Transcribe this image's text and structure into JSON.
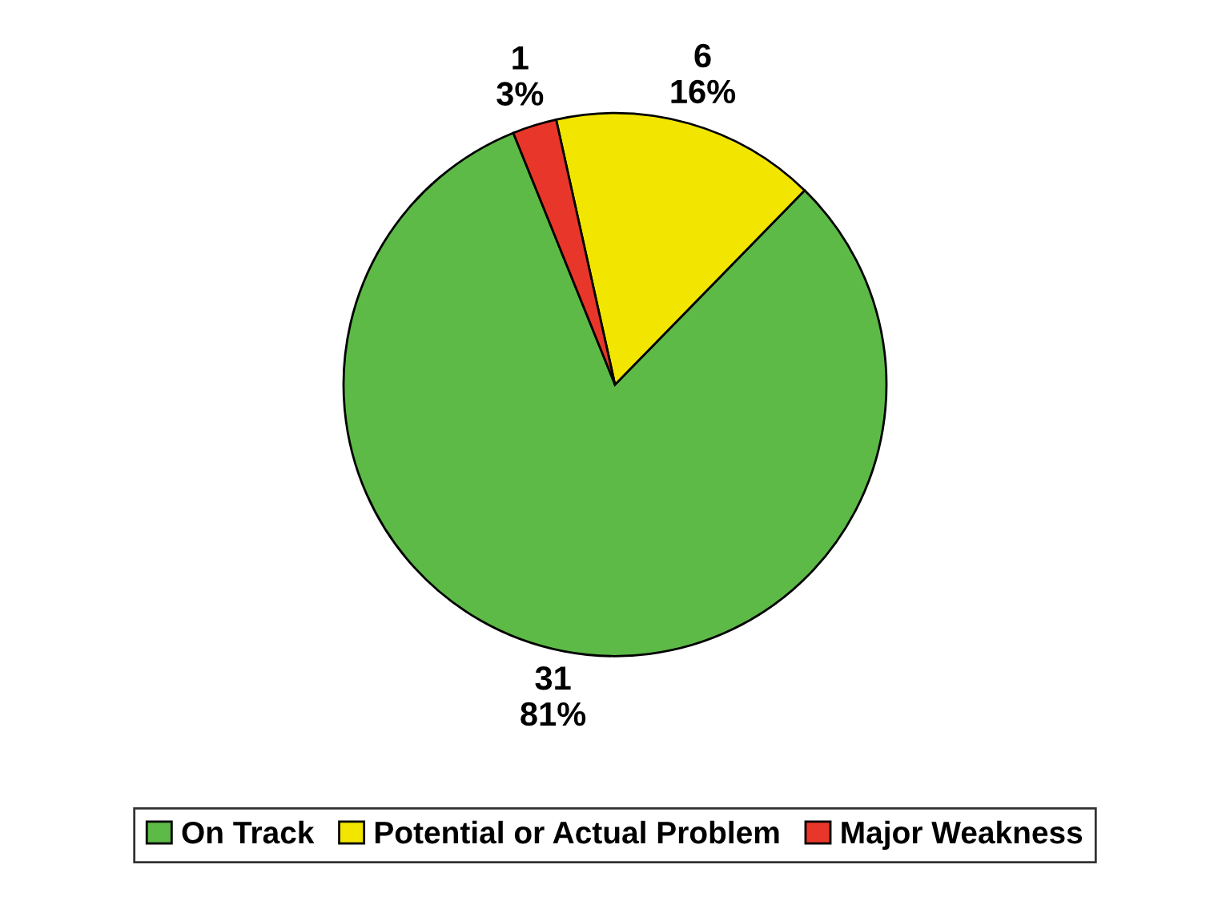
{
  "chart_data": {
    "type": "pie",
    "categories": [
      "On Track",
      "Potential or Actual Problem",
      "Major Weakness"
    ],
    "values": [
      31,
      6,
      1
    ],
    "colors": [
      "#5dba47",
      "#f2e600",
      "#e8372a"
    ],
    "value_labels": [
      "31\n81%",
      "6\n16%",
      "1\n3%"
    ],
    "legend": "bottom"
  }
}
